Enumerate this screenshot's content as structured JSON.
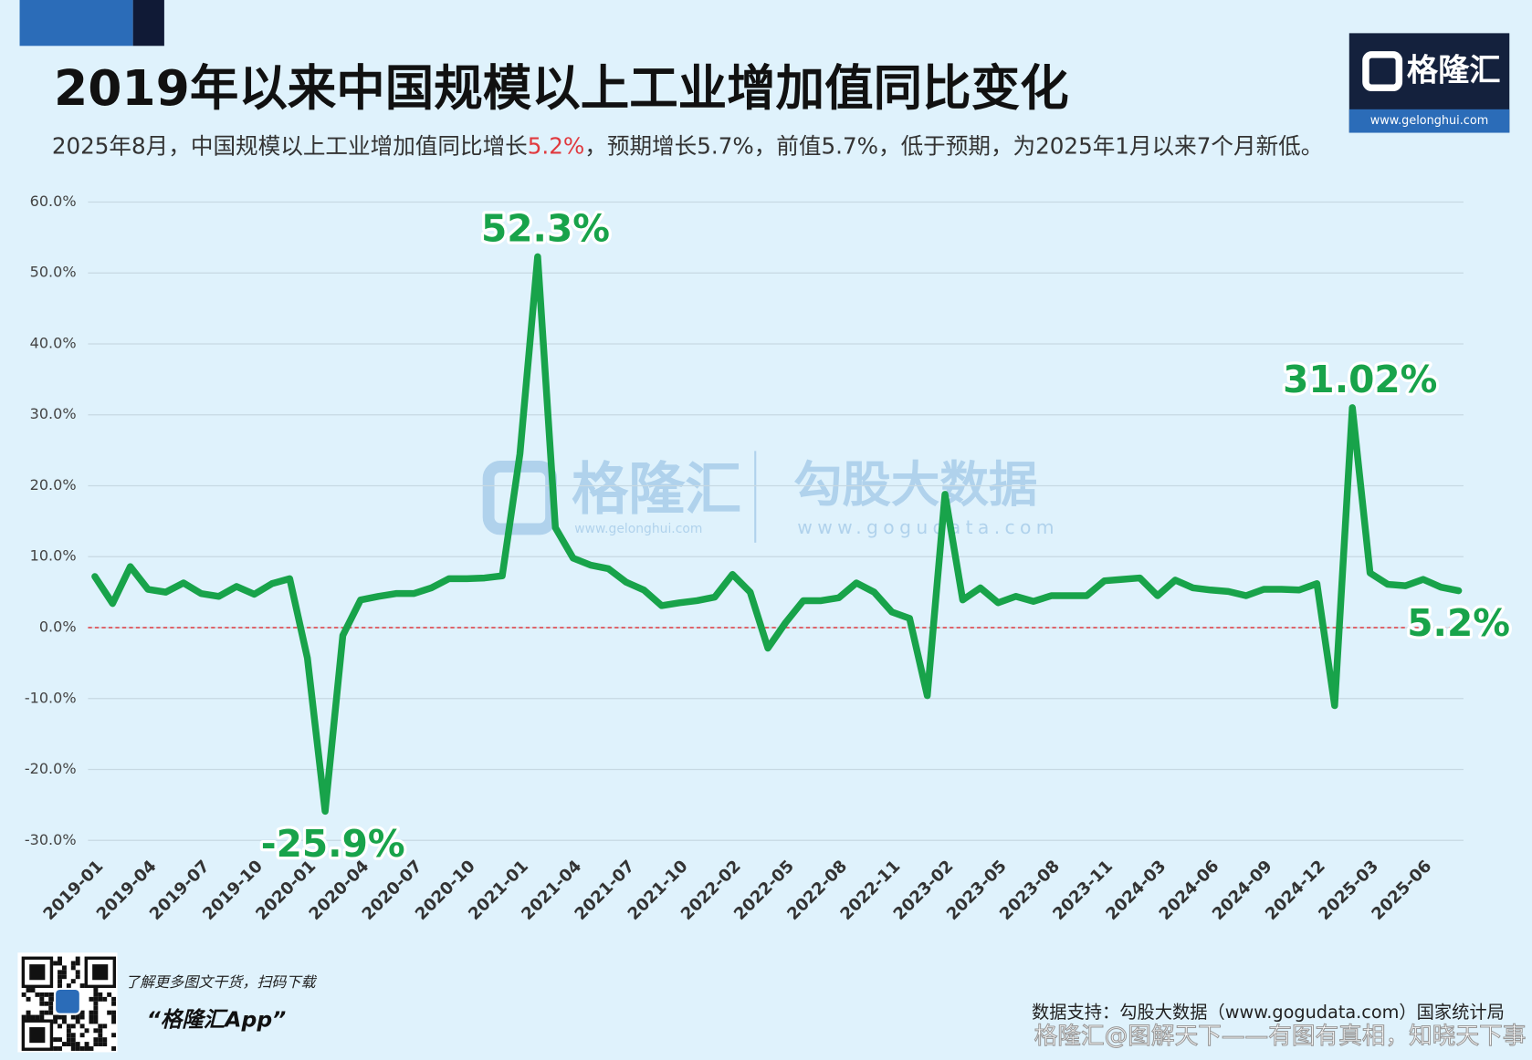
{
  "page": {
    "subtitle": [
      "2025年8月，中国规模以上工业增加值同比增长",
      "5.2%",
      "，预期增长5.7%，前值5.7%，低于预期，为2025年1月以来7个月新低。"
    ],
    "logo": {
      "name": "格隆汇",
      "url": "www.gelonghui.com"
    },
    "watermark": {
      "brand": "格隆汇",
      "brand_url": "www.gelonghui.com",
      "data_brand": "勾股大数据",
      "data_url": "www.gogudata.com"
    },
    "footer": {
      "promo": "了解更多图文干货，扫码下载",
      "app": "“格隆汇App”",
      "source": "数据支持：勾股大数据（www.gogudata.com）国家统计局",
      "credit": "格隆汇@图解天下——有图有真相，知晓天下事"
    }
  },
  "chart_data": {
    "type": "line",
    "title": "2019年以来中国规模以上工业增加值同比变化",
    "categories": [
      "2019-01",
      null,
      null,
      "2019-04",
      null,
      null,
      "2019-07",
      null,
      null,
      "2019-10",
      null,
      null,
      "2020-01",
      null,
      null,
      "2020-04",
      null,
      null,
      "2020-07",
      null,
      null,
      "2020-10",
      null,
      null,
      "2021-01",
      null,
      null,
      "2021-04",
      null,
      null,
      "2021-07",
      null,
      null,
      "2021-10",
      null,
      null,
      "2022-02",
      null,
      null,
      "2022-05",
      null,
      null,
      "2022-08",
      null,
      null,
      "2022-11",
      null,
      null,
      "2023-02",
      null,
      null,
      "2023-05",
      null,
      null,
      "2023-08",
      null,
      null,
      "2023-11",
      null,
      null,
      "2024-03",
      null,
      null,
      "2024-06",
      null,
      null,
      "2024-09",
      null,
      null,
      "2024-12",
      null,
      null,
      "2025-03",
      null,
      null,
      "2025-06",
      null,
      null
    ],
    "series": [
      {
        "name": "规模以上工业增加值同比",
        "color": "#18a34a",
        "values": [
          7.2,
          3.4,
          8.6,
          5.4,
          5.0,
          6.3,
          4.8,
          4.4,
          5.8,
          4.7,
          6.2,
          6.9,
          -4.3,
          -25.9,
          -1.1,
          3.9,
          4.4,
          4.8,
          4.8,
          5.6,
          6.9,
          6.9,
          7.0,
          7.3,
          24.5,
          52.3,
          14.1,
          9.8,
          8.8,
          8.3,
          6.4,
          5.3,
          3.1,
          3.5,
          3.8,
          4.3,
          7.5,
          5.0,
          -2.9,
          0.7,
          3.8,
          3.8,
          4.2,
          6.3,
          5.0,
          2.2,
          1.3,
          -9.6,
          18.8,
          3.9,
          5.6,
          3.5,
          4.4,
          3.7,
          4.5,
          4.5,
          4.5,
          6.6,
          6.8,
          7.0,
          4.5,
          6.7,
          5.6,
          5.3,
          5.1,
          4.5,
          5.4,
          5.4,
          5.3,
          6.2,
          -11.0,
          31.02,
          7.7,
          6.1,
          5.9,
          6.8,
          5.7,
          5.2
        ],
        "value_labels": [
          null,
          null,
          null,
          null,
          null,
          null,
          null,
          null,
          null,
          null,
          null,
          null,
          null,
          "-25.9%",
          null,
          null,
          null,
          null,
          null,
          null,
          null,
          null,
          null,
          null,
          null,
          "52.3%",
          null,
          null,
          null,
          null,
          null,
          null,
          null,
          null,
          null,
          null,
          null,
          null,
          null,
          null,
          null,
          null,
          null,
          null,
          null,
          null,
          null,
          null,
          null,
          null,
          null,
          null,
          null,
          null,
          null,
          null,
          null,
          null,
          null,
          null,
          null,
          null,
          null,
          null,
          null,
          null,
          null,
          null,
          null,
          null,
          null,
          "31.02%",
          null,
          null,
          null,
          null,
          null,
          "5.2%"
        ]
      }
    ],
    "ylim": [
      -30,
      60
    ],
    "yticks": [
      {
        "value": -30,
        "label": "-30.0%"
      },
      {
        "value": -20,
        "label": "-20.0%"
      },
      {
        "value": -10,
        "label": "-10.0%"
      },
      {
        "value": 0,
        "label": "0.0%"
      },
      {
        "value": 10,
        "label": "10.0%"
      },
      {
        "value": 20,
        "label": "20.0%"
      },
      {
        "value": 30,
        "label": "30.0%"
      },
      {
        "value": 40,
        "label": "40.0%"
      },
      {
        "value": 50,
        "label": "50.0%"
      },
      {
        "value": 60,
        "label": "60.0%"
      }
    ],
    "grid": true,
    "zero_line": {
      "color": "#e0393e",
      "dashed": true
    }
  }
}
